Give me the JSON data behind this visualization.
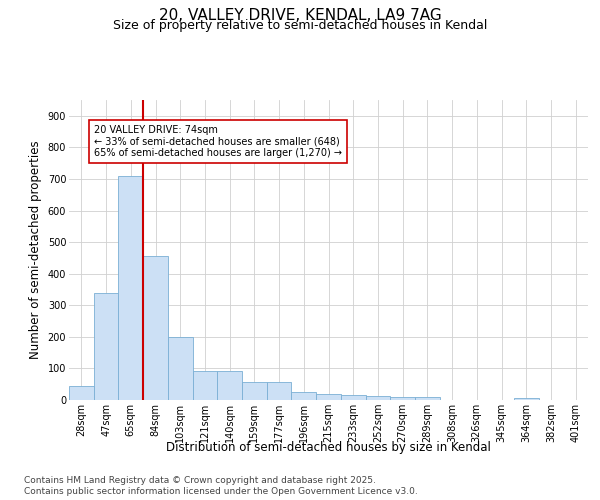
{
  "title_line1": "20, VALLEY DRIVE, KENDAL, LA9 7AG",
  "title_line2": "Size of property relative to semi-detached houses in Kendal",
  "xlabel": "Distribution of semi-detached houses by size in Kendal",
  "ylabel": "Number of semi-detached properties",
  "footnote1": "Contains HM Land Registry data © Crown copyright and database right 2025.",
  "footnote2": "Contains public sector information licensed under the Open Government Licence v3.0.",
  "categories": [
    "28sqm",
    "47sqm",
    "65sqm",
    "84sqm",
    "103sqm",
    "121sqm",
    "140sqm",
    "159sqm",
    "177sqm",
    "196sqm",
    "215sqm",
    "233sqm",
    "252sqm",
    "270sqm",
    "289sqm",
    "308sqm",
    "326sqm",
    "345sqm",
    "364sqm",
    "382sqm",
    "401sqm"
  ],
  "values": [
    45,
    340,
    710,
    455,
    200,
    92,
    92,
    58,
    58,
    25,
    20,
    15,
    12,
    10,
    8,
    0,
    0,
    0,
    5,
    0,
    0
  ],
  "bar_color": "#cce0f5",
  "bar_edge_color": "#7aafd4",
  "vline_x_index": 2,
  "vline_color": "#cc0000",
  "annotation_text": "20 VALLEY DRIVE: 74sqm\n← 33% of semi-detached houses are smaller (648)\n65% of semi-detached houses are larger (1,270) →",
  "annotation_box_color": "#ffffff",
  "annotation_box_edge": "#cc0000",
  "ylim": [
    0,
    950
  ],
  "yticks": [
    0,
    100,
    200,
    300,
    400,
    500,
    600,
    700,
    800,
    900
  ],
  "grid_color": "#d0d0d0",
  "background_color": "#ffffff",
  "title_fontsize": 11,
  "subtitle_fontsize": 9,
  "axis_label_fontsize": 8.5,
  "tick_fontsize": 7,
  "footnote_fontsize": 6.5
}
